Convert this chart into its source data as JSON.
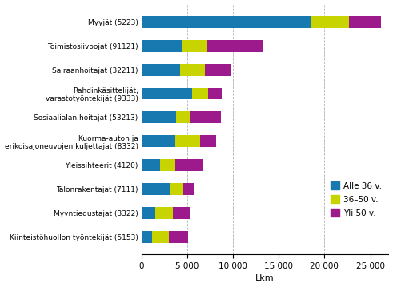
{
  "categories": [
    "Myyjät (5223)",
    "Toimistosiivoojat (91121)",
    "Sairaanhoitajat (32211)",
    "Rahdinkäsittelijät,\nvarastotyöntekijät (9333)",
    "Sosiaalialan hoitajat (53213)",
    "Kuorma-auton ja\nerikoisajoneuvojen kuljettajat (8332)",
    "Yleissihteerit (4120)",
    "Talonrakentajat (7111)",
    "Myyntiedustajat (3322)",
    "Kiinteistöhuollon työntekijät (5153)"
  ],
  "alle36": [
    18500,
    4400,
    4200,
    5500,
    3800,
    3700,
    2000,
    3200,
    1500,
    1200
  ],
  "v3650": [
    4200,
    2800,
    2700,
    1800,
    1500,
    2700,
    1700,
    1400,
    1900,
    1800
  ],
  "yli50": [
    3500,
    6000,
    2800,
    1500,
    3400,
    1800,
    3100,
    1100,
    2000,
    2100
  ],
  "color_alle36": "#1878b0",
  "color_3650": "#c8d400",
  "color_yli50": "#9c1a8c",
  "legend_labels": [
    "Alle 36 v.",
    "36–50 v.",
    "Yli 50 v."
  ],
  "xlabel": "Lkm",
  "xlim": [
    0,
    27000
  ],
  "xticks": [
    0,
    5000,
    10000,
    15000,
    20000,
    25000
  ],
  "xticklabels": [
    "0",
    "5 000",
    "10 000",
    "15 000",
    "20 000",
    "25 000"
  ],
  "background_color": "#ffffff",
  "grid_color": "#b0b0b0"
}
